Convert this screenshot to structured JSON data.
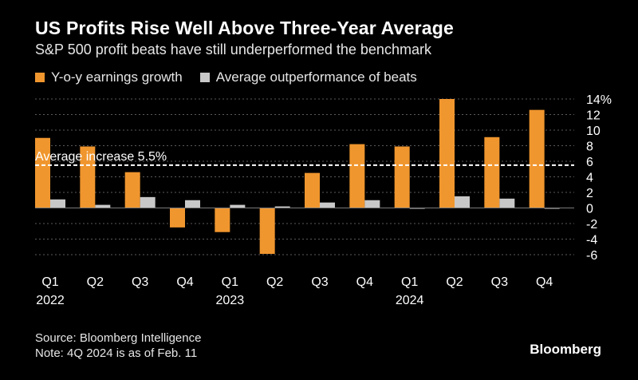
{
  "header": {
    "title": "US Profits Rise Well Above Three-Year Average",
    "subtitle": "S&P 500 profit beats have still underperformed the benchmark"
  },
  "legend": {
    "series1": "Y-o-y earnings growth",
    "series2": "Average outperformance of beats"
  },
  "colors": {
    "series1": "#f0962e",
    "series2": "#c8c8c8",
    "grid": "#5a5a5a",
    "reference": "#ffffff"
  },
  "chart_data": {
    "type": "bar",
    "title": "US Profits Rise Well Above Three-Year Average",
    "categories": [
      "Q1",
      "Q2",
      "Q3",
      "Q4",
      "Q1",
      "Q2",
      "Q3",
      "Q4",
      "Q1",
      "Q2",
      "Q3",
      "Q4"
    ],
    "year_labels": [
      "2022",
      "2023",
      "2024"
    ],
    "year_label_indices": [
      0,
      4,
      8
    ],
    "series": [
      {
        "name": "Y-o-y earnings growth",
        "values": [
          9.0,
          7.9,
          4.6,
          -2.5,
          -3.1,
          -5.9,
          4.5,
          8.2,
          7.9,
          14.0,
          9.1,
          12.6
        ]
      },
      {
        "name": "Average outperformance of beats",
        "values": [
          1.1,
          0.4,
          1.4,
          1.0,
          0.4,
          0.2,
          0.7,
          1.0,
          -0.1,
          1.5,
          1.2,
          -0.1
        ]
      }
    ],
    "reference_line": {
      "value": 5.5,
      "label": "Average increase 5.5%"
    },
    "ylim": [
      -6,
      14
    ],
    "yticks": [
      -6,
      -4,
      -2,
      0,
      2,
      4,
      6,
      8,
      10,
      12,
      14
    ],
    "ytick_labels": [
      "-6",
      "-4",
      "-2",
      "0",
      "2",
      "4",
      "6",
      "8",
      "10",
      "12",
      "14%"
    ],
    "xlabel": "",
    "ylabel": ""
  },
  "footer": {
    "source": "Source: Bloomberg Intelligence",
    "note": "Note: 4Q 2024 is as of Feb. 11",
    "brand": "Bloomberg"
  }
}
